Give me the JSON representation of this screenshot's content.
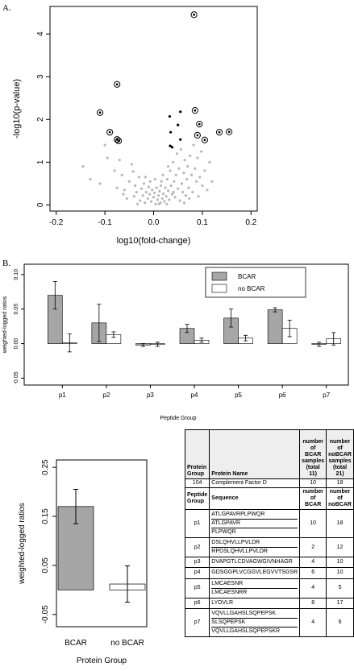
{
  "labels": {
    "panel_a": "A.",
    "panel_b": "B."
  },
  "chart_data": [
    {
      "type": "scatter",
      "title": "",
      "xlabel": "log10(fold-change)",
      "ylabel": "-log10(p-value)",
      "xlim": [
        -0.2,
        0.2
      ],
      "ylim": [
        0,
        4.5
      ],
      "xticks": [
        "-0.2",
        "-0.1",
        "0.0",
        "0.1",
        "0.2"
      ],
      "yticks": [
        "0",
        "1",
        "2",
        "3",
        "4"
      ],
      "circled_points": [
        [
          0.083,
          4.45
        ],
        [
          -0.075,
          2.82
        ],
        [
          -0.11,
          2.16
        ],
        [
          -0.09,
          1.7
        ],
        [
          -0.075,
          1.53
        ],
        [
          -0.072,
          1.5
        ],
        [
          0.085,
          2.21
        ],
        [
          0.094,
          1.89
        ],
        [
          0.09,
          1.63
        ],
        [
          0.105,
          1.52
        ],
        [
          0.135,
          1.7
        ],
        [
          0.155,
          1.71
        ]
      ],
      "black_points": [
        [
          0.055,
          2.18
        ],
        [
          0.033,
          2.07
        ],
        [
          0.05,
          1.87
        ],
        [
          0.035,
          1.7
        ],
        [
          0.055,
          1.53
        ],
        [
          0.034,
          1.38
        ],
        [
          0.038,
          1.35
        ]
      ],
      "grey_points": [
        [
          -0.1,
          1.4
        ],
        [
          -0.095,
          1.1
        ],
        [
          -0.13,
          0.6
        ],
        [
          -0.145,
          0.9
        ],
        [
          -0.11,
          0.5
        ],
        [
          -0.08,
          0.8
        ],
        [
          -0.075,
          0.4
        ],
        [
          -0.07,
          1.05
        ],
        [
          -0.065,
          0.7
        ],
        [
          -0.06,
          0.35
        ],
        [
          -0.05,
          0.55
        ],
        [
          -0.045,
          0.95
        ],
        [
          -0.04,
          0.2
        ],
        [
          -0.038,
          0.45
        ],
        [
          -0.035,
          0.3
        ],
        [
          -0.03,
          0.65
        ],
        [
          -0.028,
          0.1
        ],
        [
          -0.025,
          0.38
        ],
        [
          -0.022,
          0.22
        ],
        [
          -0.02,
          0.5
        ],
        [
          -0.018,
          0.05
        ],
        [
          -0.015,
          0.3
        ],
        [
          -0.012,
          0.15
        ],
        [
          -0.01,
          0.42
        ],
        [
          -0.008,
          0.25
        ],
        [
          -0.005,
          0.08
        ],
        [
          -0.003,
          0.35
        ],
        [
          0.0,
          0.18
        ],
        [
          0.002,
          0.28
        ],
        [
          0.004,
          0.02
        ],
        [
          0.006,
          0.4
        ],
        [
          0.008,
          0.12
        ],
        [
          0.01,
          0.22
        ],
        [
          0.012,
          0.32
        ],
        [
          0.014,
          0.05
        ],
        [
          0.016,
          0.55
        ],
        [
          0.018,
          0.15
        ],
        [
          0.02,
          0.26
        ],
        [
          0.022,
          0.08
        ],
        [
          0.024,
          0.4
        ],
        [
          0.026,
          0.2
        ],
        [
          0.028,
          0.6
        ],
        [
          0.03,
          0.33
        ],
        [
          0.032,
          0.12
        ],
        [
          0.034,
          0.8
        ],
        [
          0.036,
          0.45
        ],
        [
          0.038,
          0.25
        ],
        [
          0.04,
          1.0
        ],
        [
          0.042,
          0.55
        ],
        [
          0.044,
          0.18
        ],
        [
          0.046,
          0.7
        ],
        [
          0.048,
          1.2
        ],
        [
          0.05,
          0.38
        ],
        [
          0.052,
          0.85
        ],
        [
          0.054,
          0.1
        ],
        [
          0.056,
          1.3
        ],
        [
          0.058,
          0.5
        ],
        [
          0.06,
          0.3
        ],
        [
          0.062,
          0.75
        ],
        [
          0.064,
          1.05
        ],
        [
          0.066,
          0.22
        ],
        [
          0.068,
          0.6
        ],
        [
          0.07,
          0.9
        ],
        [
          0.072,
          0.4
        ],
        [
          0.075,
          1.15
        ],
        [
          0.078,
          0.7
        ],
        [
          0.08,
          0.3
        ],
        [
          0.082,
          1.4
        ],
        [
          0.085,
          0.85
        ],
        [
          0.088,
          0.55
        ],
        [
          0.09,
          1.1
        ],
        [
          0.092,
          0.2
        ],
        [
          0.095,
          0.65
        ],
        [
          0.098,
          1.25
        ],
        [
          0.1,
          0.45
        ],
        [
          0.105,
          0.8
        ],
        [
          0.11,
          0.35
        ],
        [
          0.115,
          1.0
        ],
        [
          0.12,
          0.55
        ],
        [
          -0.055,
          0.15
        ],
        [
          -0.042,
          0.78
        ],
        [
          -0.033,
          0.02
        ],
        [
          0.003,
          0.6
        ],
        [
          0.015,
          0.45
        ],
        [
          0.027,
          0.02
        ],
        [
          0.041,
          0.3
        ],
        [
          0.063,
          0.05
        ],
        [
          -0.017,
          0.65
        ],
        [
          -0.007,
          0.55
        ],
        [
          0.019,
          0.7
        ],
        [
          0.073,
          0.15
        ],
        [
          0.03,
          0.9
        ],
        [
          -0.062,
          0.25
        ],
        [
          0.011,
          0.02
        ]
      ],
      "x_ticks_count": 5
    },
    {
      "type": "bar",
      "title": "",
      "xlabel": "Peptide Group",
      "ylabel": "weighted-logged ratios",
      "categories": [
        "p1",
        "p2",
        "p3",
        "p4",
        "p5",
        "p6",
        "p7"
      ],
      "ylim": [
        -0.05,
        0.1
      ],
      "yticks": [
        "-0.05",
        "0.00",
        "0.05",
        "0.10"
      ],
      "legend": "top-right",
      "series": [
        {
          "name": "BCAR",
          "values": [
            0.07,
            0.03,
            -0.002,
            0.022,
            0.037,
            0.049,
            -0.001
          ],
          "errors": [
            0.02,
            0.027,
            0.002,
            0.006,
            0.013,
            0.003,
            0.003
          ],
          "color": "#a6a6a6"
        },
        {
          "name": "no BCAR",
          "values": [
            0.001,
            0.013,
            -0.001,
            0.005,
            0.008,
            0.022,
            0.007
          ],
          "errors": [
            0.013,
            0.004,
            0.003,
            0.003,
            0.004,
            0.012,
            0.009
          ],
          "color": "#ffffff"
        }
      ]
    },
    {
      "type": "bar",
      "title": "",
      "xlabel": "Protein Group",
      "ylabel": "weighted-logged ratios",
      "categories": [
        "BCAR",
        "no BCAR"
      ],
      "ylim": [
        -0.05,
        0.25
      ],
      "yticks": [
        "-0.05",
        "0.05",
        "0.15",
        "0.25"
      ],
      "values": [
        0.17,
        0.012
      ],
      "errors": [
        0.035,
        0.037
      ],
      "colors": [
        "#a6a6a6",
        "#ffffff"
      ]
    }
  ],
  "table": {
    "header": {
      "protein_group": "Protein Group",
      "protein_name": "Protein Name",
      "bcar": "number of BCAR samples (total 11)",
      "nobcar": "number of noBCAR samples (total 21)"
    },
    "protein_row": {
      "group": "104",
      "name": "Complement Factor D",
      "bcar": "10",
      "nobcar": "18"
    },
    "sub_header": {
      "peptide_group": "Peptide Group",
      "sequence": "Sequence",
      "bcar": "number of BCAR",
      "nobcar": "number of noBCAR"
    },
    "peptides": [
      {
        "group": "p1",
        "sequences": [
          "ATLGPAVRPLPWQR",
          "ATLGPAVR",
          "PLPWQR"
        ],
        "bcar": "10",
        "nobcar": "18"
      },
      {
        "group": "p2",
        "sequences": [
          "DSLQHVLLPVLDR",
          "RPDSLQHVLLPVLDR"
        ],
        "bcar": "2",
        "nobcar": "12"
      },
      {
        "group": "p3",
        "sequences": [
          "DVAPGTLCDVAGWGIVNHAGR"
        ],
        "bcar": "4",
        "nobcar": "10"
      },
      {
        "group": "p4",
        "sequences": [
          "GDSGGPLVCGGVLEGVVTSGSR"
        ],
        "bcar": "6",
        "nobcar": "10"
      },
      {
        "group": "p5",
        "sequences": [
          "LMCAESNR",
          "LMCAESNRR"
        ],
        "bcar": "4",
        "nobcar": "5"
      },
      {
        "group": "p6",
        "sequences": [
          "LYDVLR"
        ],
        "bcar": "8",
        "nobcar": "17"
      },
      {
        "group": "p7",
        "sequences": [
          "VQVLLGAHSLSQPEPSK",
          "SLSQPEPSK",
          "VQVLLGAHSLSQPEPSKR"
        ],
        "bcar": "4",
        "nobcar": "6"
      }
    ]
  }
}
